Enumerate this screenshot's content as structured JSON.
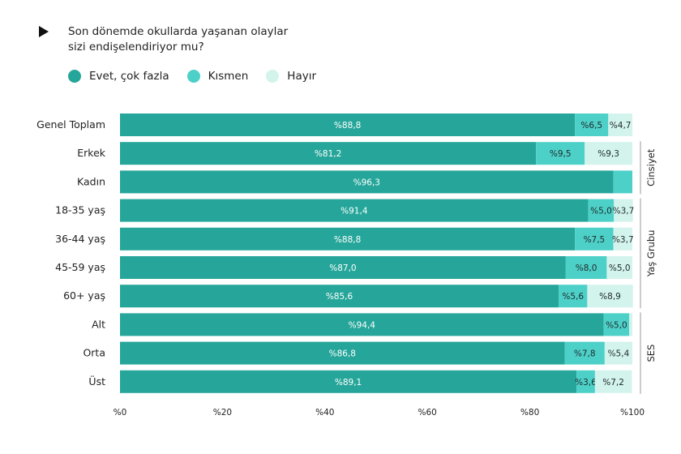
{
  "title": "Son dönemde okullarda yaşanan olaylar sizi endişelendiriyor mu?",
  "legend": [
    {
      "label": "Evet, çok fazla",
      "color": "#26a69a"
    },
    {
      "label": "Kısmen",
      "color": "#4dd0c8"
    },
    {
      "label": "Hayır",
      "color": "#d3f3ed"
    }
  ],
  "chart_data": {
    "type": "bar",
    "orientation": "horizontal",
    "stacked": true,
    "title": "Son dönemde okullarda yaşanan olaylar sizi endişelendiriyor mu?",
    "categories": [
      "Genel Toplam",
      "Erkek",
      "Kadın",
      "18-35 yaş",
      "36-44 yaş",
      "45-59 yaş",
      "60+ yaş",
      "Alt",
      "Orta",
      "Üst"
    ],
    "series": [
      {
        "name": "Evet, çok fazla",
        "color": "#26a69a",
        "values": [
          88.8,
          81.2,
          96.3,
          91.4,
          88.8,
          87.0,
          85.6,
          94.4,
          86.8,
          89.1
        ],
        "labels": [
          "%88,8",
          "%81,2",
          "%96,3",
          "%91,4",
          "%88,8",
          "%87,0",
          "%85,6",
          "%94,4",
          "%86,8",
          "%89,1"
        ]
      },
      {
        "name": "Kısmen",
        "color": "#4dd0c8",
        "values": [
          6.5,
          9.5,
          3.7,
          5.0,
          7.5,
          8.0,
          5.6,
          5.0,
          7.8,
          3.6
        ],
        "labels": [
          "%6,5",
          "%9,5",
          "",
          "%5,0",
          "%7,5",
          "%8,0",
          "%5,6",
          "%5,0",
          "%7,8",
          "%3,6"
        ]
      },
      {
        "name": "Hayır",
        "color": "#d3f3ed",
        "values": [
          4.7,
          9.3,
          0.0,
          3.7,
          3.7,
          5.0,
          8.9,
          0.6,
          5.4,
          7.2
        ],
        "labels": [
          "%4,7",
          "%9,3",
          "",
          "%3,7",
          "%3,7",
          "%5,0",
          "%8,9",
          "",
          "%5,4",
          "%7,2"
        ]
      }
    ],
    "groups": [
      {
        "label": "Cinsiyet",
        "from": 1,
        "to": 2
      },
      {
        "label": "Yaş Grubu",
        "from": 3,
        "to": 6
      },
      {
        "label": "SES",
        "from": 7,
        "to": 9
      }
    ],
    "x_ticks": [
      0,
      20,
      40,
      60,
      80,
      100
    ],
    "x_tick_labels": [
      "%0",
      "%20",
      "%40",
      "%60",
      "%80",
      "%100"
    ],
    "xlim": [
      0,
      100
    ],
    "grid": false,
    "legend_position": "top-left"
  }
}
